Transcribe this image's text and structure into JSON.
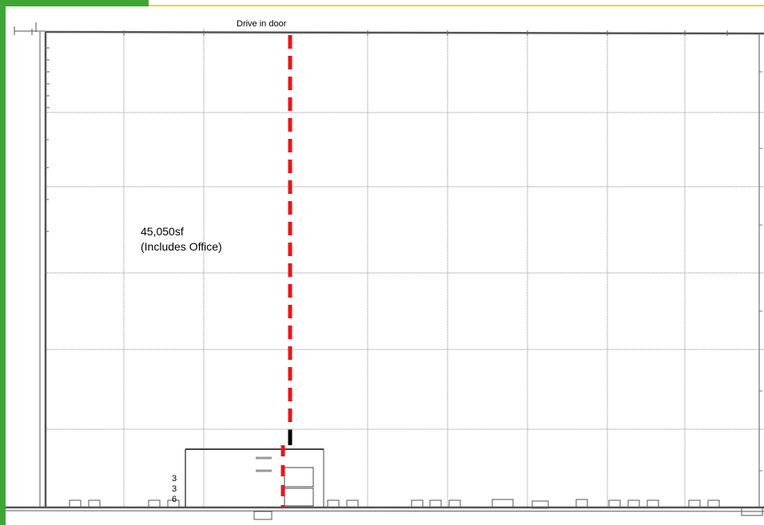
{
  "floor_plan": {
    "door_label": "Drive in door",
    "area_label": "45,050sf",
    "area_note": "(Includes Office)",
    "vertical_digits": [
      "3",
      "3",
      "6"
    ]
  },
  "colors": {
    "green_border": "#3fa535",
    "yellow_line": "#f2d400",
    "path_dash": "#e8141b",
    "wall": "#555555",
    "grid": "#8a8a8a"
  }
}
